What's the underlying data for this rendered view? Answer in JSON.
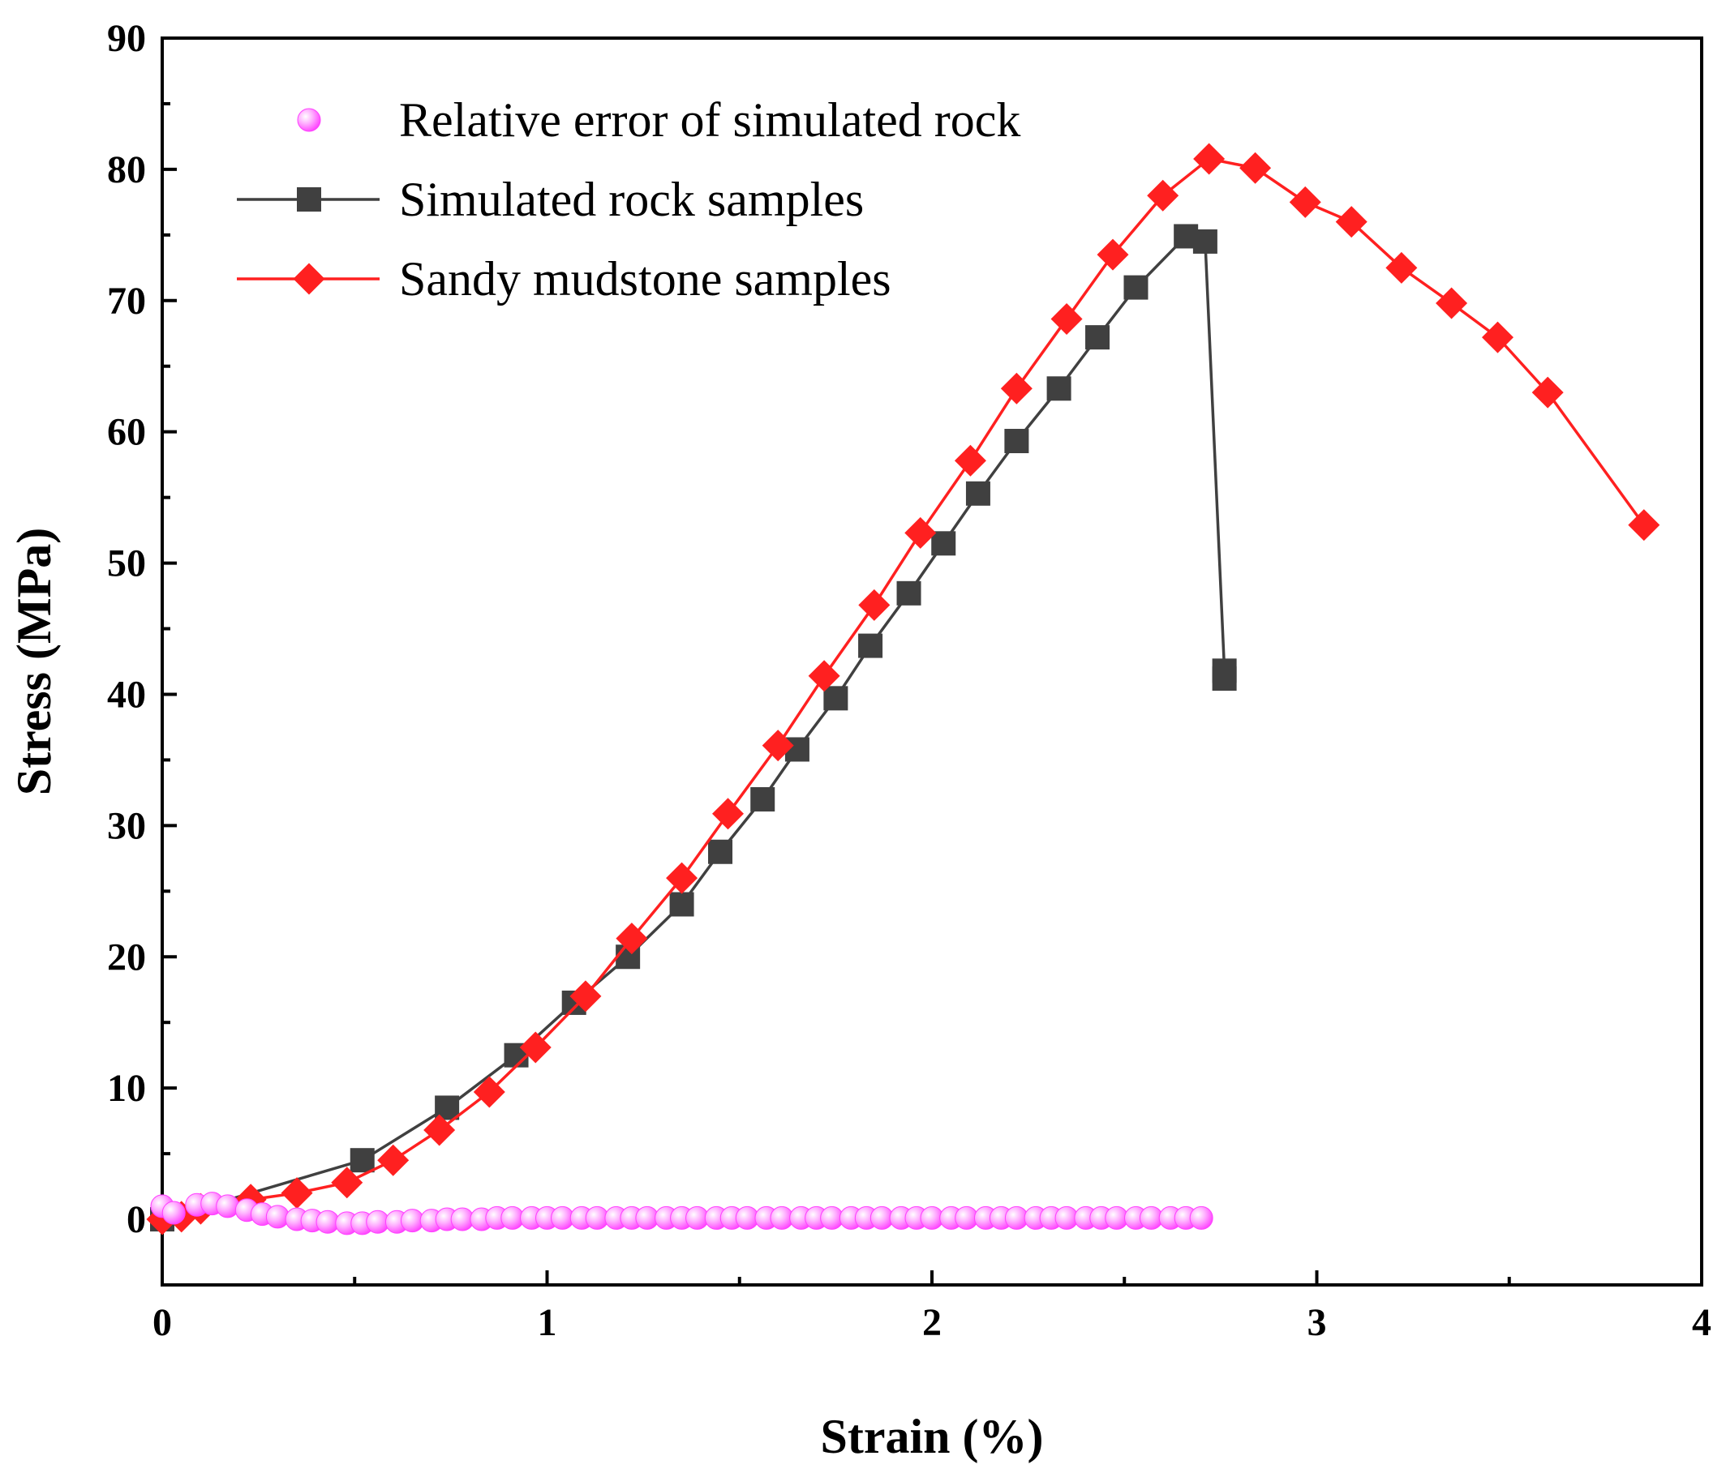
{
  "chart_data": {
    "type": "line",
    "title": "",
    "xlabel": "Strain (%)",
    "ylabel": "Stress (MPa)",
    "xlim": [
      0,
      4
    ],
    "ylim": [
      -5,
      90
    ],
    "xticks": [
      0,
      1,
      2,
      3,
      4
    ],
    "yticks": [
      0,
      10,
      20,
      30,
      40,
      50,
      60,
      70,
      80,
      90
    ],
    "grid": false,
    "legend_position": "top-left",
    "colors": {
      "simulated": "#404040",
      "sandy": "#ff2020",
      "relative_error": "#ff40ff"
    },
    "series": [
      {
        "name": "Relative error of simulated rock",
        "marker": "circle",
        "line": false,
        "x": [
          0.0,
          0.03,
          0.09,
          0.13,
          0.17,
          0.22,
          0.26,
          0.3,
          0.35,
          0.39,
          0.43,
          0.48,
          0.52,
          0.56,
          0.61,
          0.65,
          0.7,
          0.74,
          0.78,
          0.83,
          0.87,
          0.91,
          0.96,
          1.0,
          1.04,
          1.09,
          1.13,
          1.18,
          1.22,
          1.26,
          1.31,
          1.35,
          1.39,
          1.44,
          1.48,
          1.52,
          1.57,
          1.61,
          1.66,
          1.7,
          1.74,
          1.79,
          1.83,
          1.87,
          1.92,
          1.96,
          2.0,
          2.05,
          2.09,
          2.14,
          2.18,
          2.22,
          2.27,
          2.31,
          2.35,
          2.4,
          2.44,
          2.48,
          2.53,
          2.57,
          2.62,
          2.66,
          2.7
        ],
        "y": [
          1.0,
          0.5,
          1.1,
          1.2,
          1.0,
          0.7,
          0.4,
          0.2,
          0.0,
          -0.1,
          -0.2,
          -0.3,
          -0.3,
          -0.2,
          -0.2,
          -0.1,
          -0.1,
          0.0,
          0.0,
          0.0,
          0.1,
          0.1,
          0.1,
          0.1,
          0.1,
          0.1,
          0.1,
          0.1,
          0.1,
          0.1,
          0.1,
          0.1,
          0.1,
          0.1,
          0.1,
          0.1,
          0.1,
          0.1,
          0.1,
          0.1,
          0.1,
          0.1,
          0.1,
          0.1,
          0.1,
          0.1,
          0.1,
          0.1,
          0.1,
          0.1,
          0.1,
          0.1,
          0.1,
          0.1,
          0.1,
          0.1,
          0.1,
          0.1,
          0.1,
          0.1,
          0.1,
          0.1,
          0.1
        ]
      },
      {
        "name": "Simulated rock samples",
        "marker": "square",
        "line": true,
        "x": [
          0.0,
          0.52,
          0.74,
          0.92,
          1.07,
          1.21,
          1.35,
          1.45,
          1.56,
          1.65,
          1.75,
          1.84,
          1.94,
          2.03,
          2.12,
          2.22,
          2.33,
          2.43,
          2.53,
          2.66,
          2.71,
          2.76,
          2.76
        ],
        "y": [
          0.0,
          4.5,
          8.5,
          12.5,
          16.5,
          20.0,
          24.0,
          28.0,
          32.0,
          35.8,
          39.7,
          43.7,
          47.7,
          51.5,
          55.3,
          59.3,
          63.3,
          67.2,
          71.0,
          74.9,
          74.5,
          41.8,
          41.2
        ]
      },
      {
        "name": "Sandy mudstone samples",
        "marker": "diamond",
        "line": true,
        "x": [
          0.0,
          0.05,
          0.1,
          0.23,
          0.35,
          0.48,
          0.6,
          0.72,
          0.85,
          0.97,
          1.1,
          1.22,
          1.35,
          1.47,
          1.6,
          1.72,
          1.85,
          1.97,
          2.1,
          2.22,
          2.35,
          2.47,
          2.6,
          2.72,
          2.84,
          2.97,
          3.09,
          3.22,
          3.35,
          3.47,
          3.6,
          3.85
        ],
        "y": [
          0.0,
          0.2,
          0.8,
          1.5,
          2.0,
          2.8,
          4.5,
          6.8,
          9.7,
          13.1,
          17.0,
          21.4,
          26.0,
          30.9,
          36.1,
          41.4,
          46.8,
          52.3,
          57.8,
          63.3,
          68.6,
          73.5,
          78.0,
          80.8,
          80.1,
          77.5,
          76.0,
          72.5,
          69.8,
          67.2,
          63.0,
          52.9
        ]
      }
    ]
  }
}
